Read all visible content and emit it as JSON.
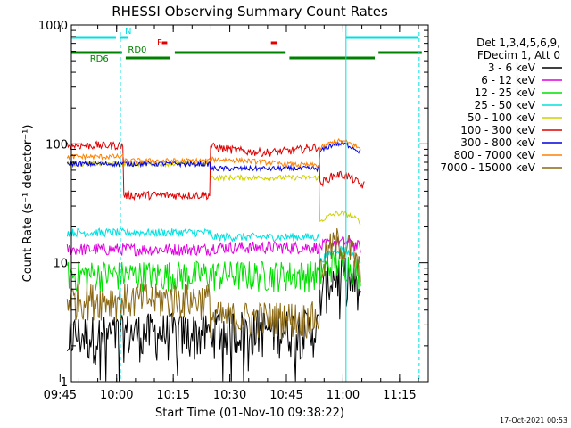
{
  "chart_data": {
    "type": "line",
    "title": "RHESSI Observing Summary Count Rates",
    "xlabel": "Start Time (01-Nov-10 09:38:22)",
    "ylabel": "Count Rate (s⁻¹ detector⁻¹)",
    "yscale": "log",
    "ylim": [
      1,
      1000
    ],
    "xlim_minutes": [
      9.6,
      104.2
    ],
    "x_ticks": [
      {
        "label": "09:45",
        "min": 6.6
      },
      {
        "label": "10:00",
        "min": 21.6
      },
      {
        "label": "10:15",
        "min": 36.6
      },
      {
        "label": "10:30",
        "min": 51.6
      },
      {
        "label": "10:45",
        "min": 66.6
      },
      {
        "label": "11:00",
        "min": 81.6
      },
      {
        "label": "11:15",
        "min": 96.6
      }
    ],
    "y_ticks": [
      {
        "label": "1",
        "value": 1
      },
      {
        "label": "10",
        "value": 10
      },
      {
        "label": "100",
        "value": 100
      },
      {
        "label": "1000",
        "value": 1000
      }
    ],
    "legend_header": [
      "Det 1,3,4,5,6,9,",
      "FDecim 1, Att 0"
    ],
    "legend_position": "right",
    "series": [
      {
        "name": "3 - 6 keV",
        "color": "#000000"
      },
      {
        "name": "6 - 12 keV",
        "color": "#e000e0"
      },
      {
        "name": "12 - 25 keV",
        "color": "#00e000"
      },
      {
        "name": "25 - 50 keV",
        "color": "#00e0e0"
      },
      {
        "name": "50 - 100 keV",
        "color": "#d0d000"
      },
      {
        "name": "100 - 300 keV",
        "color": "#e00000"
      },
      {
        "name": "300 - 800 keV",
        "color": "#0000e0"
      },
      {
        "name": "800 - 7000 keV",
        "color": "#ff8000"
      },
      {
        "name": "7000 - 15000 keV",
        "color": "#8b6914"
      }
    ],
    "annotations": [
      {
        "label": "N",
        "color": "#00e0e0"
      },
      {
        "label": "RD0",
        "color": "#008000"
      },
      {
        "label": "RD6",
        "color": "#008000"
      },
      {
        "label": "F",
        "color": "#e00000"
      }
    ],
    "footer_timestamp": "17-Oct-2021 00:53"
  }
}
